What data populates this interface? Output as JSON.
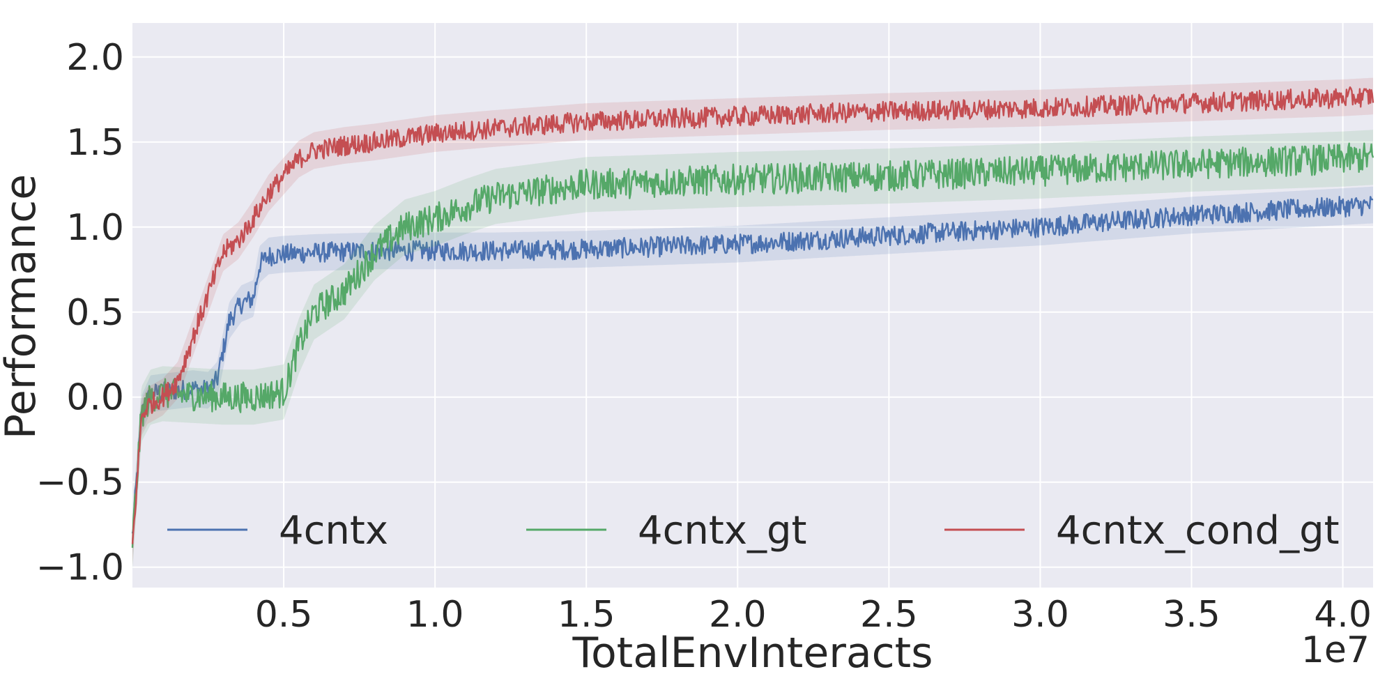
{
  "chart_data": {
    "type": "line",
    "title": "",
    "xlabel": "TotalEnvInteracts",
    "ylabel": "Performance",
    "x_offset_label": "1e7",
    "xlim": [
      0.0,
      4.1
    ],
    "ylim": [
      -1.12,
      2.2
    ],
    "x_ticks": [
      0.5,
      1.0,
      1.5,
      2.0,
      2.5,
      3.0,
      3.5,
      4.0
    ],
    "x_tick_labels": [
      "0.5",
      "1.0",
      "1.5",
      "2.0",
      "2.5",
      "3.0",
      "3.5",
      "4.0"
    ],
    "y_ticks": [
      -1.0,
      -0.5,
      0.0,
      0.5,
      1.0,
      1.5,
      2.0
    ],
    "y_tick_labels": [
      "−1.0",
      "−0.5",
      "0.0",
      "0.5",
      "1.0",
      "1.5",
      "2.0"
    ],
    "grid": true,
    "legend_position": "bottom",
    "background": "#eaeaf2",
    "series": [
      {
        "name": "4cntx",
        "color": "#4c72b0",
        "x": [
          0.0,
          0.03,
          0.06,
          0.1,
          0.2,
          0.25,
          0.28,
          0.32,
          0.36,
          0.4,
          0.42,
          0.45,
          0.5,
          0.6,
          0.8,
          1.0,
          1.2,
          1.5,
          2.0,
          2.5,
          3.0,
          3.5,
          4.0,
          4.1
        ],
        "y": [
          -0.82,
          -0.1,
          0.02,
          0.03,
          0.05,
          0.04,
          0.1,
          0.45,
          0.55,
          0.58,
          0.78,
          0.83,
          0.84,
          0.85,
          0.86,
          0.86,
          0.86,
          0.87,
          0.9,
          0.95,
          1.0,
          1.07,
          1.12,
          1.13
        ]
      },
      {
        "name": "4cntx_gt",
        "color": "#55a868",
        "x": [
          0.0,
          0.03,
          0.06,
          0.1,
          0.2,
          0.3,
          0.4,
          0.5,
          0.55,
          0.6,
          0.7,
          0.8,
          0.9,
          1.0,
          1.1,
          1.2,
          1.5,
          2.0,
          2.5,
          3.0,
          3.5,
          4.0,
          4.1
        ],
        "y": [
          -0.85,
          -0.1,
          0.0,
          0.02,
          0.01,
          0.0,
          0.0,
          0.03,
          0.3,
          0.5,
          0.62,
          0.85,
          1.0,
          1.05,
          1.12,
          1.18,
          1.25,
          1.28,
          1.3,
          1.33,
          1.37,
          1.4,
          1.41
        ]
      },
      {
        "name": "4cntx_cond_gt",
        "color": "#c44e52",
        "x": [
          0.0,
          0.03,
          0.05,
          0.1,
          0.15,
          0.2,
          0.25,
          0.3,
          0.35,
          0.4,
          0.45,
          0.5,
          0.55,
          0.6,
          0.7,
          0.8,
          1.0,
          1.2,
          1.5,
          2.0,
          2.5,
          3.0,
          3.5,
          4.0,
          4.1
        ],
        "y": [
          -0.88,
          -0.12,
          -0.05,
          0.0,
          0.1,
          0.35,
          0.6,
          0.85,
          0.92,
          1.05,
          1.2,
          1.3,
          1.4,
          1.45,
          1.48,
          1.5,
          1.55,
          1.58,
          1.62,
          1.65,
          1.68,
          1.7,
          1.73,
          1.76,
          1.77
        ]
      }
    ]
  }
}
